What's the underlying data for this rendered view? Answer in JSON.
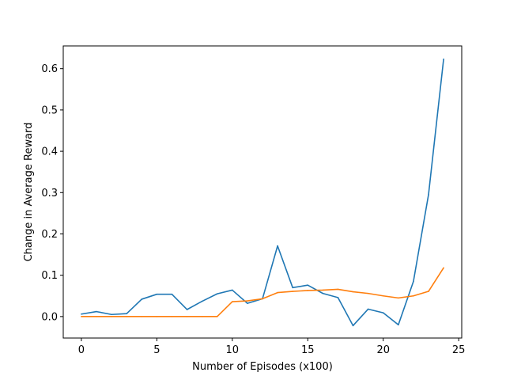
{
  "chart_data": {
    "type": "line",
    "title": "",
    "xlabel": "Number of Episodes (x100)",
    "ylabel": "Change in Average Reward",
    "xlim": [
      -1.2,
      25.2
    ],
    "ylim": [
      -0.052,
      0.655
    ],
    "xticks": [
      0,
      5,
      10,
      15,
      20,
      25
    ],
    "xtick_labels": [
      "0",
      "5",
      "10",
      "15",
      "20",
      "25"
    ],
    "yticks": [
      0.0,
      0.1,
      0.2,
      0.3,
      0.4,
      0.5,
      0.6
    ],
    "ytick_labels": [
      "0.0",
      "0.1",
      "0.2",
      "0.3",
      "0.4",
      "0.5",
      "0.6"
    ],
    "grid": false,
    "legend": "none",
    "x": [
      0,
      1,
      2,
      3,
      4,
      5,
      6,
      7,
      8,
      9,
      10,
      11,
      12,
      13,
      14,
      15,
      16,
      17,
      18,
      19,
      20,
      21,
      22,
      23,
      24
    ],
    "series": [
      {
        "name": "series-1",
        "color": "#1f77b4",
        "values": [
          0.006,
          0.012,
          0.005,
          0.007,
          0.042,
          0.054,
          0.054,
          0.017,
          0.037,
          0.055,
          0.064,
          0.032,
          0.043,
          0.171,
          0.07,
          0.076,
          0.056,
          0.046,
          -0.022,
          0.018,
          0.009,
          -0.02,
          0.085,
          0.295,
          0.623
        ]
      },
      {
        "name": "series-2",
        "color": "#ff7f0e",
        "values": [
          0.0,
          0.0,
          0.0,
          0.0,
          0.0,
          0.0,
          0.0,
          0.0,
          0.0,
          0.0,
          0.036,
          0.038,
          0.043,
          0.058,
          0.061,
          0.063,
          0.064,
          0.066,
          0.06,
          0.056,
          0.05,
          0.045,
          0.05,
          0.061,
          0.118
        ]
      }
    ]
  }
}
